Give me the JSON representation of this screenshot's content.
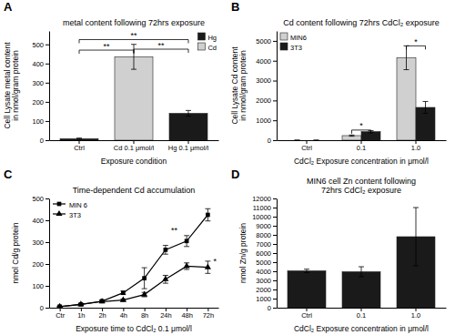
{
  "chart_data": [
    {
      "type": "bar",
      "panel_label": "A",
      "title": "metal content following 72hrs exposure",
      "xlabel": "Exposure condition",
      "ylabel": "Cell Lysate metal content\nin nmol/gram protein",
      "categories": [
        "Ctrl",
        "Cd 0.1 μmol/l",
        "Hg 0.1 μmol/l"
      ],
      "series": [
        {
          "name": "Hg",
          "color": "#1a1a1a",
          "values": [
            8,
            null,
            140
          ],
          "errors": [
            3,
            null,
            15
          ]
        },
        {
          "name": "Cd",
          "color": "#d0d0d0",
          "values": [
            null,
            435,
            null
          ],
          "errors": [
            null,
            65,
            null
          ]
        }
      ],
      "stacked": true,
      "ylim": [
        0,
        570
      ],
      "yticks": [
        0,
        100,
        200,
        300,
        400,
        500
      ],
      "grid": false,
      "legend": "upper-right",
      "annotations": [
        {
          "text": "**",
          "x": [
            "Ctrl",
            "Cd 0.1 μmol/l"
          ],
          "y": 470
        },
        {
          "text": "**",
          "x": [
            "Cd 0.1 μmol/l",
            "Hg 0.1 μmol/l"
          ],
          "y": 475
        },
        {
          "text": "**",
          "x": [
            "Ctrl",
            "Hg 0.1 μmol/l"
          ],
          "y": 525
        }
      ]
    },
    {
      "type": "bar",
      "panel_label": "B",
      "title": "Cd content following 72hrs CdCl₂ exposure",
      "xlabel": "CdCl₂ Exposure concentration in μmol/l",
      "ylabel": "Cell Lysate Cd content\nin nmol/gram protein",
      "categories": [
        "Ctrl",
        "0.1",
        "1.0"
      ],
      "series": [
        {
          "name": "MIN6",
          "color": "#d0d0d0",
          "values": [
            0,
            230,
            4150
          ],
          "errors": [
            0,
            30,
            600
          ]
        },
        {
          "name": "3T3",
          "color": "#1a1a1a",
          "values": [
            0,
            430,
            1650
          ],
          "errors": [
            0,
            50,
            300
          ]
        }
      ],
      "ylim": [
        0,
        5500
      ],
      "yticks": [
        0,
        1000,
        2000,
        3000,
        4000,
        5000
      ],
      "grid": false,
      "legend": "upper-left",
      "annotations": [
        {
          "text": "*",
          "x": "0.1",
          "y": 510
        },
        {
          "text": "*",
          "x": "1.0",
          "y": 4750
        }
      ]
    },
    {
      "type": "line",
      "panel_label": "C",
      "title": "Time-dependent Cd accumulation",
      "xlabel": "Exposure time to CdCl₂ 0.1 μmol/l",
      "ylabel": "nmol Cd/g protein",
      "categories": [
        "Ctr",
        "1h",
        "2h",
        "4h",
        "8h",
        "24h",
        "48h",
        "72h"
      ],
      "series": [
        {
          "name": "MIN 6",
          "color": "black",
          "marker": "square",
          "values": [
            5,
            15,
            30,
            68,
            135,
            265,
            305,
            425
          ],
          "errors": [
            2,
            4,
            5,
            8,
            48,
            20,
            25,
            28
          ]
        },
        {
          "name": "3T3",
          "color": "black",
          "marker": "triangle",
          "values": [
            5,
            15,
            28,
            35,
            60,
            130,
            190,
            185
          ],
          "errors": [
            2,
            4,
            4,
            5,
            10,
            18,
            15,
            28
          ]
        }
      ],
      "ylim": [
        0,
        500
      ],
      "yticks": [
        0,
        100,
        200,
        300,
        400,
        500
      ],
      "grid": false,
      "legend": "upper-left",
      "annotations": [
        {
          "text": "**",
          "x": "24h",
          "y": 340
        },
        {
          "text": "*",
          "x": "72h",
          "y": 200
        }
      ]
    },
    {
      "type": "bar",
      "panel_label": "D",
      "title": "MIN6 cell Zn content following\n72hrs CdCl₂ exposure",
      "xlabel": "CdCl₂ Exposure concentration in μmol/l",
      "ylabel": "nmol Zn/g protein",
      "categories": [
        "Ctrl",
        "0.1",
        "1.0"
      ],
      "values": [
        4050,
        3950,
        7800
      ],
      "errors": [
        180,
        550,
        3200
      ],
      "color": "#1a1a1a",
      "ylim": [
        0,
        12000
      ],
      "yticks": [
        0,
        1000,
        2000,
        3000,
        4000,
        5000,
        6000,
        7000,
        8000,
        9000,
        10000,
        11000,
        12000
      ],
      "grid": false
    }
  ]
}
